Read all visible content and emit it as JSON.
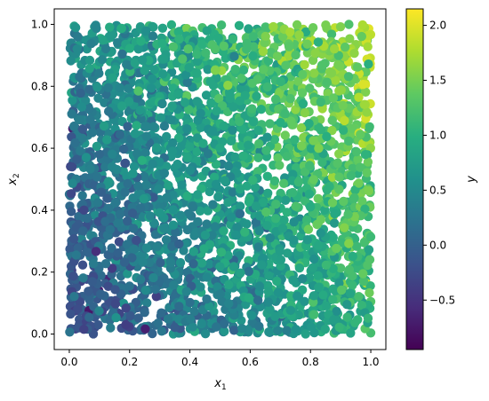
{
  "chart_data": {
    "type": "scatter",
    "title": "",
    "xlabel_base": "x",
    "xlabel_sub": "1",
    "ylabel_base": "x",
    "ylabel_sub": "2",
    "xlim": [
      -0.05,
      1.05
    ],
    "ylim": [
      -0.05,
      1.05
    ],
    "xticks": [
      0.0,
      0.2,
      0.4,
      0.6,
      0.8,
      1.0
    ],
    "yticks": [
      0.0,
      0.2,
      0.4,
      0.6,
      0.8,
      1.0
    ],
    "xtick_labels": [
      "0.0",
      "0.2",
      "0.4",
      "0.6",
      "0.8",
      "1.0"
    ],
    "ytick_labels": [
      "0.0",
      "0.2",
      "0.4",
      "0.6",
      "0.8",
      "1.0"
    ],
    "grid": false,
    "colormap": "viridis",
    "point_count": 3000,
    "color_function": "y ≈ 0.5·sin(2πx1)+... increasing with x1 and x2 (min ≈ -0.85, max ≈ 2.1)",
    "points_sample": [
      {
        "x": 0.02,
        "y": 0.05,
        "c": -0.6
      },
      {
        "x": 0.3,
        "y": 0.2,
        "c": -0.7
      },
      {
        "x": 0.5,
        "y": 0.5,
        "c": 0.6
      },
      {
        "x": 0.9,
        "y": 0.95,
        "c": 2.0
      },
      {
        "x": 0.95,
        "y": 0.8,
        "c": 1.6
      }
    ],
    "colorbar": {
      "label": "y",
      "range": [
        -0.95,
        2.15
      ],
      "ticks": [
        -0.5,
        0.0,
        0.5,
        1.0,
        1.5,
        2.0
      ],
      "tick_labels": [
        "−0.5",
        "0.0",
        "0.5",
        "1.0",
        "1.5",
        "2.0"
      ]
    }
  }
}
